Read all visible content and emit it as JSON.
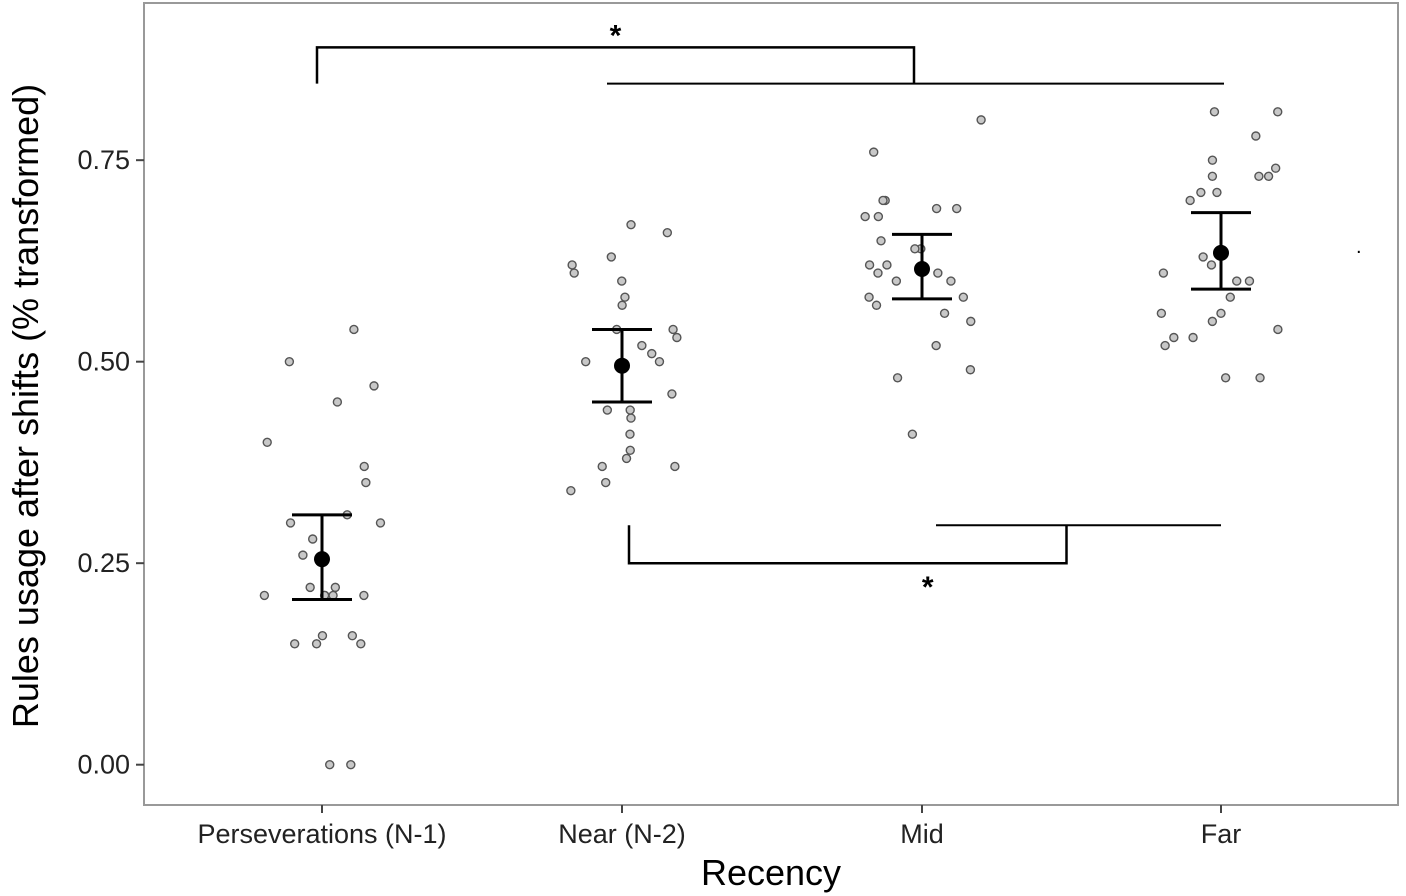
{
  "chart_data": {
    "type": "scatter",
    "xlabel": "Recency",
    "ylabel": "Rules usage after shifts (% transformed)",
    "categories": [
      "Perseverations (N-1)",
      "Near (N-2)",
      "Mid",
      "Far"
    ],
    "ylim": [
      -0.05,
      0.945
    ],
    "yticks": [
      0.0,
      0.25,
      0.5,
      0.75
    ],
    "ytick_labels": [
      "0.00",
      "0.25",
      "0.50",
      "0.75"
    ],
    "grid": false,
    "summary": [
      {
        "category": "Perseverations (N-1)",
        "mean": 0.255,
        "lower": 0.205,
        "upper": 0.31
      },
      {
        "category": "Near (N-2)",
        "mean": 0.495,
        "lower": 0.45,
        "upper": 0.54
      },
      {
        "category": "Mid",
        "mean": 0.615,
        "lower": 0.578,
        "upper": 0.658
      },
      {
        "category": "Far",
        "mean": 0.635,
        "lower": 0.59,
        "upper": 0.685
      }
    ],
    "points": [
      {
        "category": "Perseverations (N-1)",
        "values": [
          0.0,
          0.0,
          0.15,
          0.15,
          0.15,
          0.16,
          0.16,
          0.21,
          0.21,
          0.21,
          0.21,
          0.22,
          0.22,
          0.21,
          0.26,
          0.28,
          0.3,
          0.3,
          0.31,
          0.35,
          0.37,
          0.4,
          0.45,
          0.47,
          0.5,
          0.54
        ]
      },
      {
        "category": "Near (N-2)",
        "values": [
          0.34,
          0.35,
          0.37,
          0.37,
          0.38,
          0.39,
          0.41,
          0.43,
          0.44,
          0.44,
          0.46,
          0.5,
          0.5,
          0.51,
          0.52,
          0.53,
          0.54,
          0.54,
          0.57,
          0.58,
          0.6,
          0.61,
          0.62,
          0.63,
          0.66,
          0.67
        ]
      },
      {
        "category": "Mid",
        "values": [
          0.41,
          0.48,
          0.49,
          0.52,
          0.55,
          0.56,
          0.57,
          0.58,
          0.58,
          0.6,
          0.6,
          0.61,
          0.61,
          0.62,
          0.62,
          0.64,
          0.64,
          0.65,
          0.68,
          0.68,
          0.69,
          0.69,
          0.7,
          0.7,
          0.76,
          0.8
        ]
      },
      {
        "category": "Far",
        "values": [
          0.48,
          0.48,
          0.52,
          0.53,
          0.53,
          0.54,
          0.55,
          0.56,
          0.56,
          0.58,
          0.6,
          0.6,
          0.61,
          0.62,
          0.63,
          0.7,
          0.71,
          0.71,
          0.73,
          0.73,
          0.73,
          0.74,
          0.75,
          0.78,
          0.81,
          0.81
        ]
      }
    ],
    "annotations": [
      {
        "label": "*",
        "from_category": "Perseverations (N-1)",
        "to_categories": [
          "Near (N-2)",
          "Mid",
          "Far"
        ],
        "position": "top"
      },
      {
        "label": "*",
        "from_category": "Near (N-2)",
        "to_categories": [
          "Mid",
          "Far"
        ],
        "position": "bottom"
      }
    ],
    "colors": {
      "points_fill": "#c8c8c8",
      "points_stroke": "#555555",
      "summary": "#000000",
      "panel_border": "#999999"
    }
  }
}
